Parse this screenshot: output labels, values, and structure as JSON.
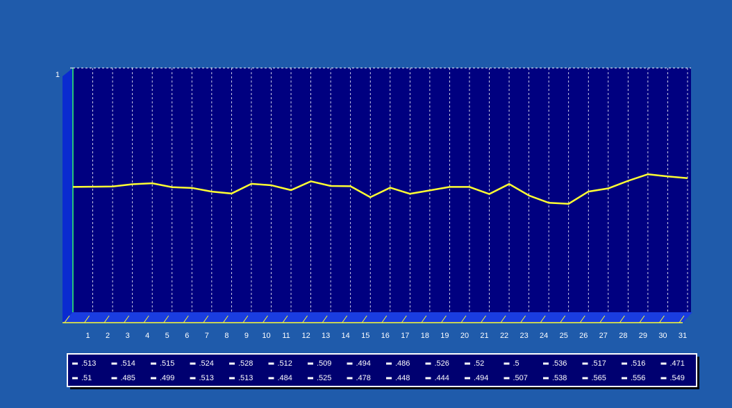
{
  "chart_data": {
    "type": "line",
    "categories": [
      null,
      "1",
      "2",
      "3",
      "4",
      "5",
      "6",
      "7",
      "8",
      "9",
      "10",
      "11",
      "12",
      "13",
      "14",
      "15",
      "16",
      "17",
      "18",
      "19",
      "20",
      "21",
      "22",
      "23",
      "24",
      "25",
      "26",
      "27",
      "28",
      "29",
      "30",
      "31"
    ],
    "values": [
      0.513,
      0.514,
      0.515,
      0.524,
      0.528,
      0.512,
      0.509,
      0.494,
      0.486,
      0.526,
      0.52,
      0.5,
      0.536,
      0.517,
      0.516,
      0.471,
      0.51,
      0.485,
      0.499,
      0.513,
      0.513,
      0.484,
      0.525,
      0.478,
      0.448,
      0.444,
      0.494,
      0.507,
      0.538,
      0.565,
      0.556,
      0.549
    ],
    "value_labels": [
      ".513",
      ".514",
      ".515",
      ".524",
      ".528",
      ".512",
      ".509",
      ".494",
      ".486",
      ".526",
      ".52",
      ".5",
      ".536",
      ".517",
      ".516",
      ".471",
      ".51",
      ".485",
      ".499",
      ".513",
      ".513",
      ".484",
      ".525",
      ".478",
      ".448",
      ".444",
      ".494",
      ".507",
      ".538",
      ".565",
      ".556",
      ".549"
    ],
    "color": "#ffff33",
    "ylim": [
      0,
      1
    ],
    "yticks": [
      1
    ],
    "grid": true
  }
}
